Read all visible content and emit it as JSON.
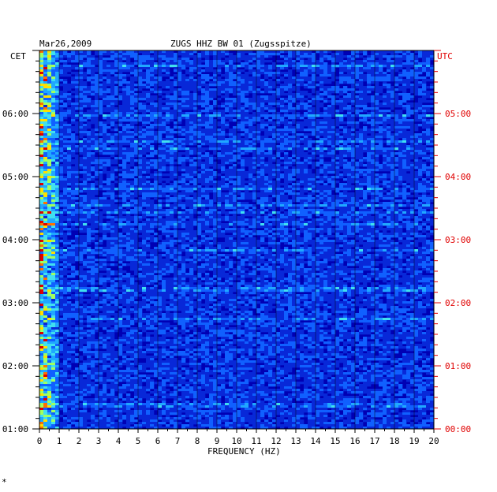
{
  "chart_data": {
    "type": "heatmap",
    "title": "ZUGS HHZ BW 01 (Zugsspitze)",
    "date": "Mar26,2009",
    "left_axis_label": "CET",
    "right_axis_label": "UTC",
    "xlabel": "FREQUENCY (HZ)",
    "xlim": [
      0,
      20
    ],
    "x_ticks": [
      "0",
      "1",
      "2",
      "3",
      "4",
      "5",
      "6",
      "7",
      "8",
      "9",
      "10",
      "11",
      "12",
      "13",
      "14",
      "15",
      "16",
      "17",
      "18",
      "19",
      "20"
    ],
    "y_ticks_left": [
      "06:00",
      "05:00",
      "04:00",
      "03:00",
      "02:00",
      "01:00"
    ],
    "y_ticks_right": [
      "05:00",
      "04:00",
      "03:00",
      "02:00",
      "01:00",
      "00:00"
    ],
    "left_time_range_hours": [
      1,
      7
    ],
    "colors": {
      "background": "#0000b4",
      "left_axis": "#000000",
      "right_axis": "#e00000"
    },
    "footnote": "*"
  }
}
